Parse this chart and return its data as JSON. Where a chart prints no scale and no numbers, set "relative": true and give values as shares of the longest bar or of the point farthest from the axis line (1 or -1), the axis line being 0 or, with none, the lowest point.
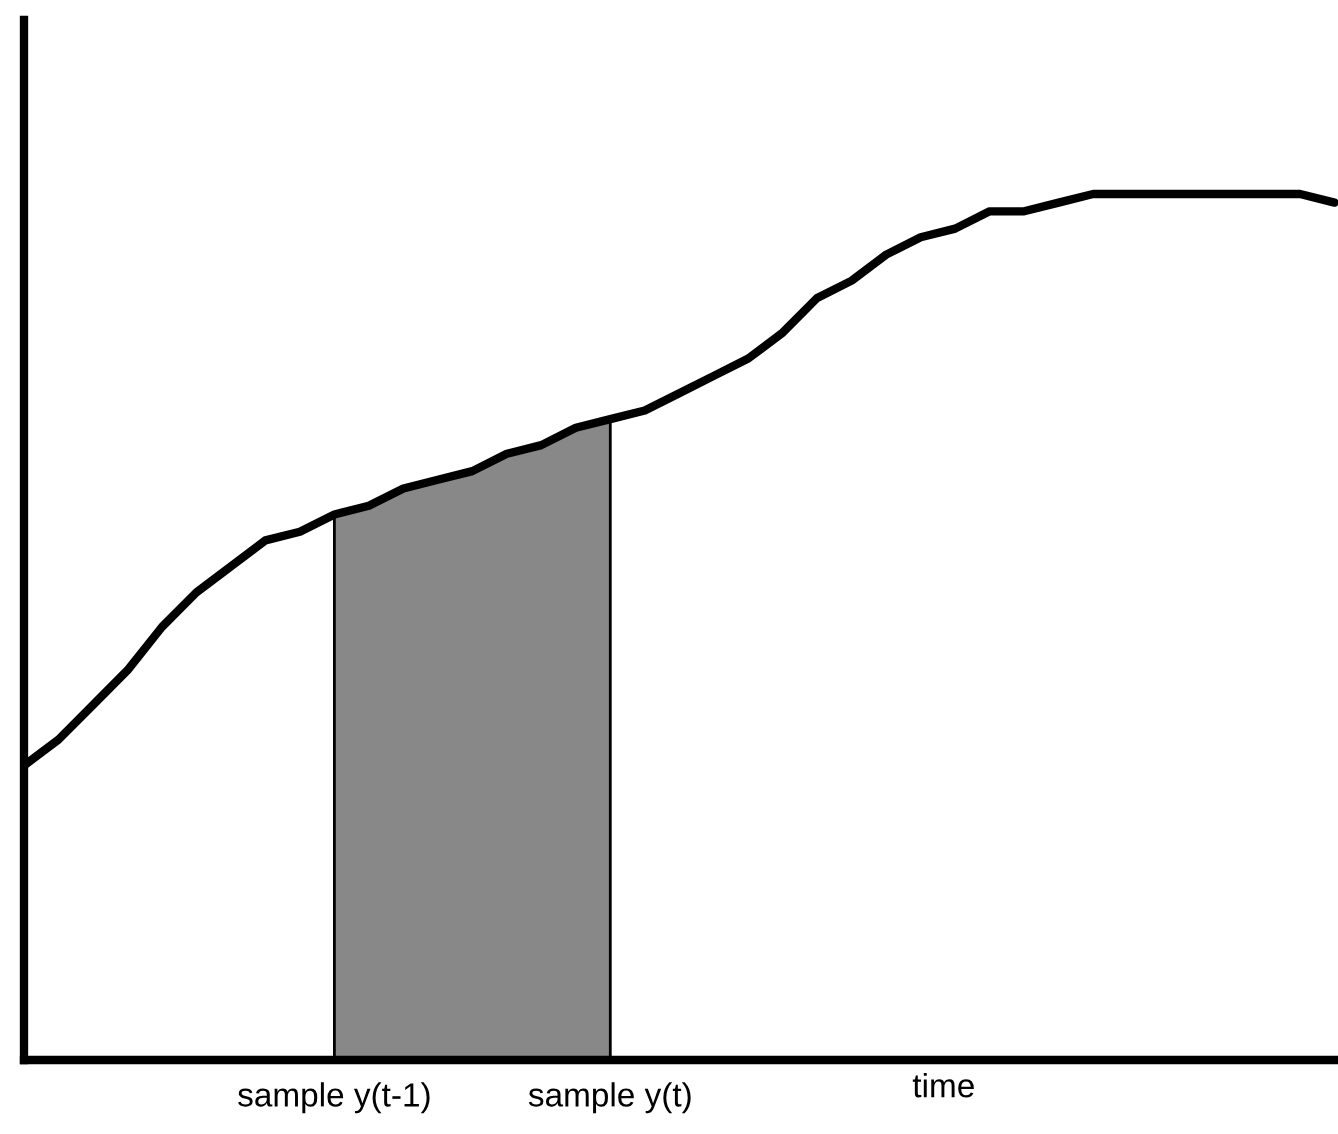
{
  "chart_data": {
    "type": "line",
    "relative": true,
    "xlabel": "time",
    "grid": false,
    "legend": false,
    "marker": "none",
    "line_style": "solid",
    "categories": [
      null,
      null,
      null,
      null,
      null,
      null,
      null,
      null,
      null,
      "sample y(t-1)",
      null,
      null,
      null,
      null,
      null,
      null,
      null,
      "sample y(t)",
      null,
      null,
      null,
      null,
      null,
      null,
      null,
      null,
      null,
      null,
      null,
      null,
      null,
      null,
      null,
      null,
      null,
      null,
      null,
      null,
      null
    ],
    "series": [
      {
        "type": "area",
        "color": "#888888",
        "values": [
          null,
          null,
          null,
          null,
          null,
          null,
          null,
          null,
          null,
          0.63,
          0.64,
          0.66,
          0.67,
          0.68,
          0.7,
          0.71,
          0.73,
          0.74,
          null,
          null,
          null,
          null,
          null,
          null,
          null,
          null,
          null,
          null,
          null,
          null,
          null,
          null,
          null,
          null,
          null,
          null,
          null,
          null,
          null
        ]
      },
      {
        "color": "#000000",
        "values": [
          0.34,
          0.37,
          0.41,
          0.45,
          0.5,
          0.54,
          0.57,
          0.6,
          0.61,
          0.63,
          0.64,
          0.66,
          0.67,
          0.68,
          0.7,
          0.71,
          0.73,
          0.74,
          0.75,
          0.77,
          0.79,
          0.81,
          0.84,
          0.88,
          0.9,
          0.93,
          0.95,
          0.96,
          0.98,
          0.98,
          0.99,
          1.0,
          1.0,
          1.0,
          1.0,
          1.0,
          1.0,
          1.0,
          0.99
        ]
      }
    ]
  }
}
